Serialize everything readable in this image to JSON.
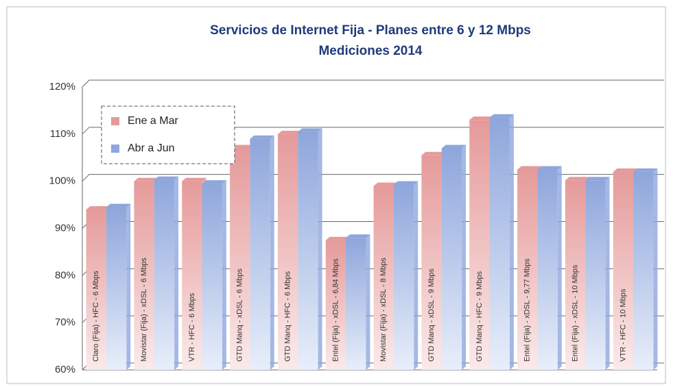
{
  "chart_data": {
    "type": "bar",
    "title": "Servicios de Internet Fija - Planes entre 6 y 12 Mbps",
    "subtitle": "Mediciones 2014",
    "categories": [
      "Claro (Fija) - HFC - 6 Mbps",
      "Movistar (Fija) - xDSL - 6 Mbps",
      "VTR - HFC - 6 Mbps",
      "GTD Manq - xDSL - 6 Mbps",
      "GTD Manq - HFC - 6 Mbps",
      "Entel (Fija) - xDSL - 6,84 Mbps",
      "Movistar (Fija) - xDSL - 8 Mbps",
      "GTD Manq - xDSL - 9 Mbps",
      "GTD Manq - HFC - 9 Mbps",
      "Entel (Fija) - xDSL - 9,77 Mbps",
      "Entel (Fija) - xDSL - 10 Mbps",
      "VTR - HFC - 10 Mbps"
    ],
    "series": [
      {
        "name": "Ene a Mar",
        "color": "#e59a9a",
        "values": [
          94,
          100,
          100,
          107,
          110,
          87.5,
          99,
          105.5,
          113,
          102.5,
          100.2,
          102
        ]
      },
      {
        "name": "Abr a Jun",
        "color": "#8ea6dc",
        "values": [
          94.5,
          100.3,
          99.5,
          109,
          110.5,
          88,
          99.3,
          107,
          113.5,
          102.5,
          100.2,
          102
        ]
      }
    ],
    "ylim": [
      60,
      120
    ],
    "yticks": [
      {
        "value": 60,
        "label": "60%"
      },
      {
        "value": 70,
        "label": "70%"
      },
      {
        "value": 80,
        "label": "80%"
      },
      {
        "value": 90,
        "label": "90%"
      },
      {
        "value": 100,
        "label": "100%"
      },
      {
        "value": 110,
        "label": "110%"
      },
      {
        "value": 120,
        "label": "120%"
      }
    ],
    "grid": true,
    "legend": "upper left"
  }
}
